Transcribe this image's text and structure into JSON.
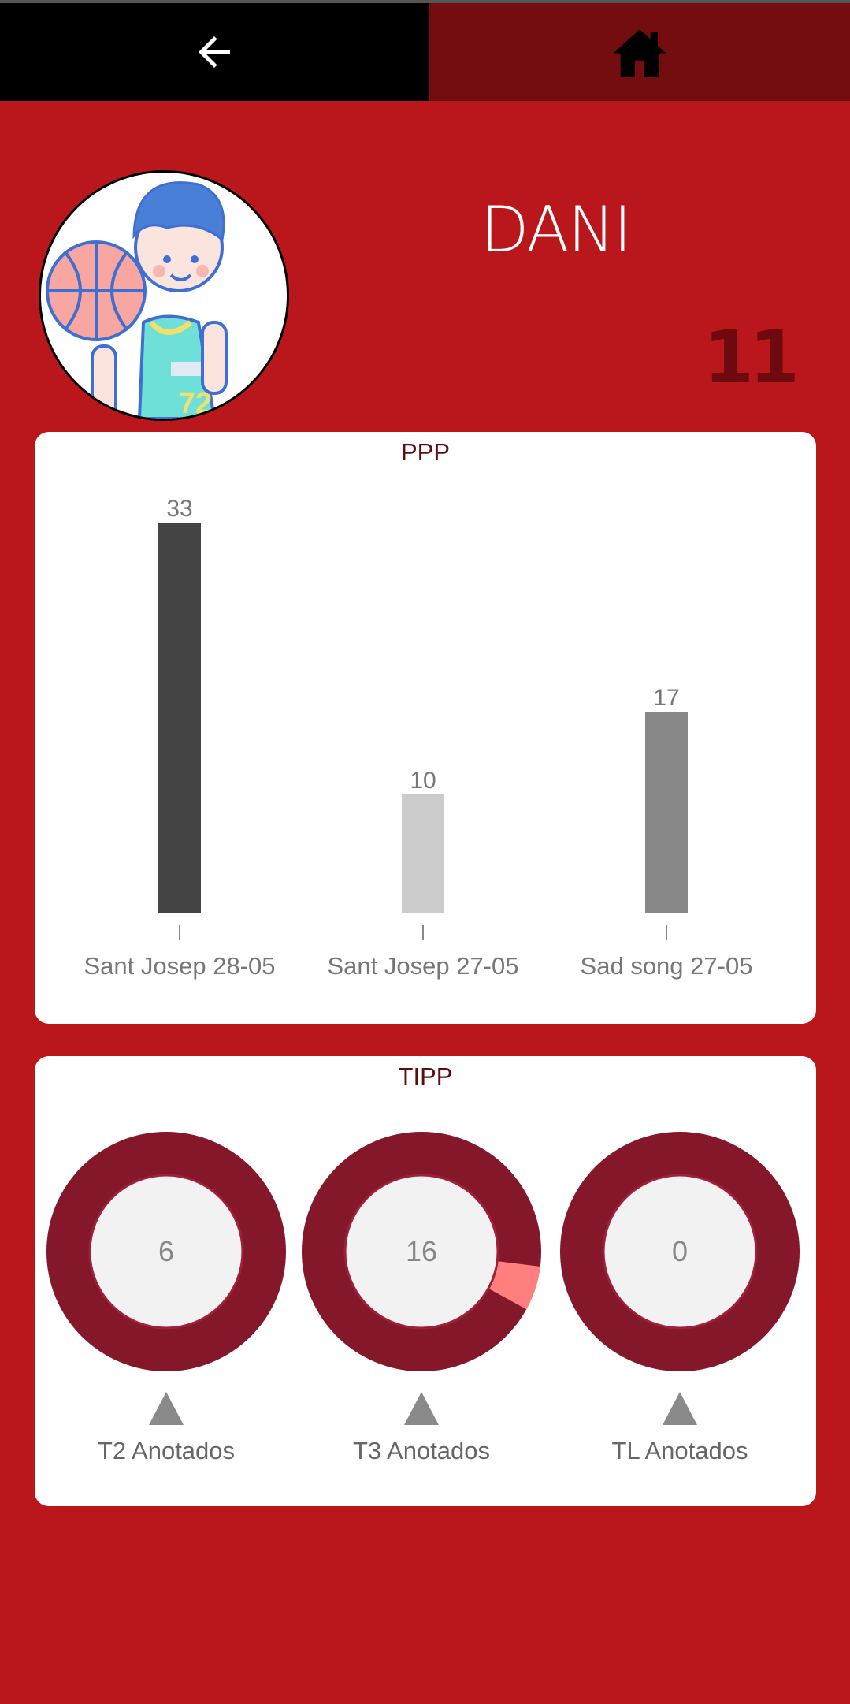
{
  "topbar": {
    "back_icon": "arrow-left-icon",
    "home_icon": "home-icon"
  },
  "player": {
    "name": "DANI",
    "number": "11",
    "avatar_icon": "basketball-player-avatar"
  },
  "ppp": {
    "title": "PPP",
    "chart_data": {
      "type": "bar",
      "categories": [
        "Sant Josep 28-05",
        "Sant Josep 27-05",
        "Sad song 27-05"
      ],
      "values": [
        33,
        10,
        17
      ],
      "colors": [
        "#444444",
        "#cccccc",
        "#888888"
      ],
      "ylim": [
        0,
        33
      ]
    }
  },
  "tipp": {
    "title": "TIPP",
    "chart_data": [
      {
        "type": "pie",
        "label": "T2 Anotados",
        "value": 6,
        "highlight_fraction": 0
      },
      {
        "type": "pie",
        "label": "T3 Anotados",
        "value": 16,
        "highlight_fraction": 0.06
      },
      {
        "type": "pie",
        "label": "TL Anotados",
        "value": 0,
        "highlight_fraction": 0
      }
    ],
    "colors": {
      "ring": "#85172b",
      "center": "#f2f2f2",
      "highlight": "#ff7f7f"
    }
  }
}
